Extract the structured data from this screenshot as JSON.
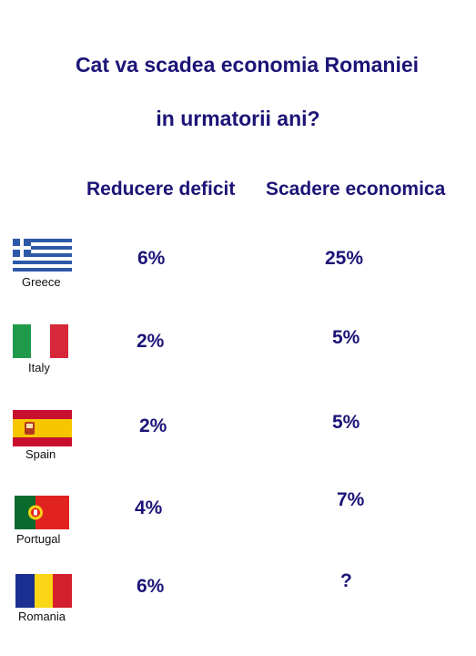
{
  "title": {
    "line1": "Cat va scadea economia Romaniei",
    "line2": "in urmatorii ani?"
  },
  "columns": {
    "deficit": "Reducere deficit",
    "economy": "Scadere economica"
  },
  "rows": [
    {
      "country": "Greece",
      "deficit": "6%",
      "economy": "25%",
      "flag": "greece-flag"
    },
    {
      "country": "Italy",
      "deficit": "2%",
      "economy": "5%",
      "flag": "italy-flag"
    },
    {
      "country": "Spain",
      "deficit": "2%",
      "economy": "5%",
      "flag": "spain-flag"
    },
    {
      "country": "Portugal",
      "deficit": "4%",
      "economy": "7%",
      "flag": "portugal-flag"
    },
    {
      "country": "Romania",
      "deficit": "6%",
      "economy": "?",
      "flag": "romania-flag"
    }
  ],
  "colors": {
    "text": "#1c1477",
    "greece_blue": "#2d5aa8",
    "italy_green": "#1e9a4a",
    "italy_red": "#d6283a",
    "spain_red": "#c8102e",
    "spain_yellow": "#f7c600",
    "portugal_green": "#0b6b2e",
    "portugal_red": "#e1231f",
    "romania_blue": "#1a2f8f",
    "romania_yellow": "#f9d616",
    "romania_red": "#d41f2c"
  }
}
